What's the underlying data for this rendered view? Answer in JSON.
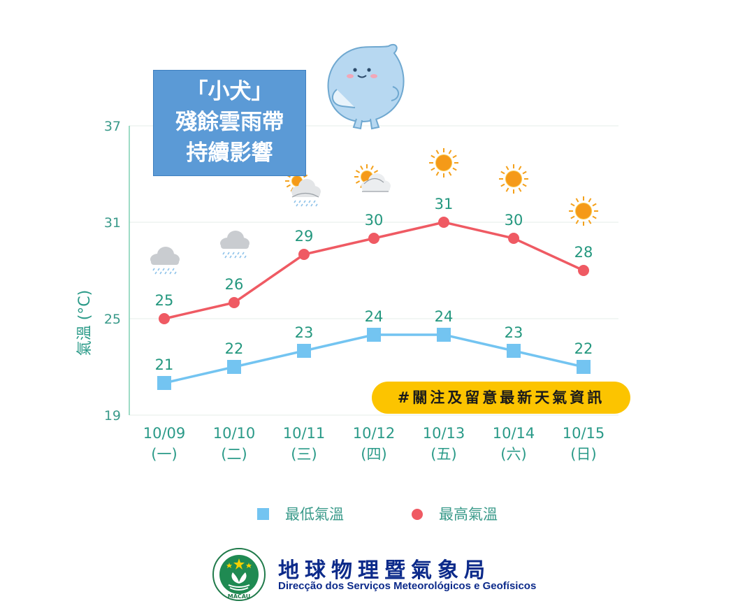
{
  "headline": {
    "line1": "「小犬」",
    "line2": "殘餘雲雨帶",
    "line3": "持續影響"
  },
  "notice": {
    "text": "#關注及留意最新天氣資訊"
  },
  "organization": {
    "name_zh": "地球物理暨氣象局",
    "name_pt": "Direcção dos Serviços Meteorológicos e Geofísicos",
    "emblem_text": "MACAU"
  },
  "colors": {
    "max_temp": "#ef5a63",
    "min_temp": "#73c4f1",
    "axis_text": "#2a9a88",
    "grid": "#e6ecea",
    "axis_line": "#7fd0b4"
  },
  "chart_data": {
    "type": "line",
    "ylabel": "氣溫 (°C)",
    "ylim": [
      19,
      37
    ],
    "yticks": [
      19,
      25,
      31,
      37
    ],
    "categories": [
      {
        "date": "10/09",
        "weekday": "(一)"
      },
      {
        "date": "10/10",
        "weekday": "(二)"
      },
      {
        "date": "10/11",
        "weekday": "(三)"
      },
      {
        "date": "10/12",
        "weekday": "(四)"
      },
      {
        "date": "10/13",
        "weekday": "(五)"
      },
      {
        "date": "10/14",
        "weekday": "(六)"
      },
      {
        "date": "10/15",
        "weekday": "(日)"
      }
    ],
    "series": [
      {
        "key": "min",
        "name": "最低氣溫",
        "marker": "square",
        "values": [
          21,
          22,
          23,
          24,
          24,
          23,
          22
        ]
      },
      {
        "key": "max",
        "name": "最高氣溫",
        "marker": "circle",
        "values": [
          25,
          26,
          29,
          30,
          31,
          30,
          28
        ]
      }
    ],
    "weather_icons": [
      "rain-cloud-icon",
      "rain-cloud-icon",
      "sun-cloud-rain-icon",
      "sun-cloud-icon",
      "sun-icon",
      "sun-icon",
      "sun-icon"
    ],
    "legend_position": "bottom",
    "grid": true
  }
}
